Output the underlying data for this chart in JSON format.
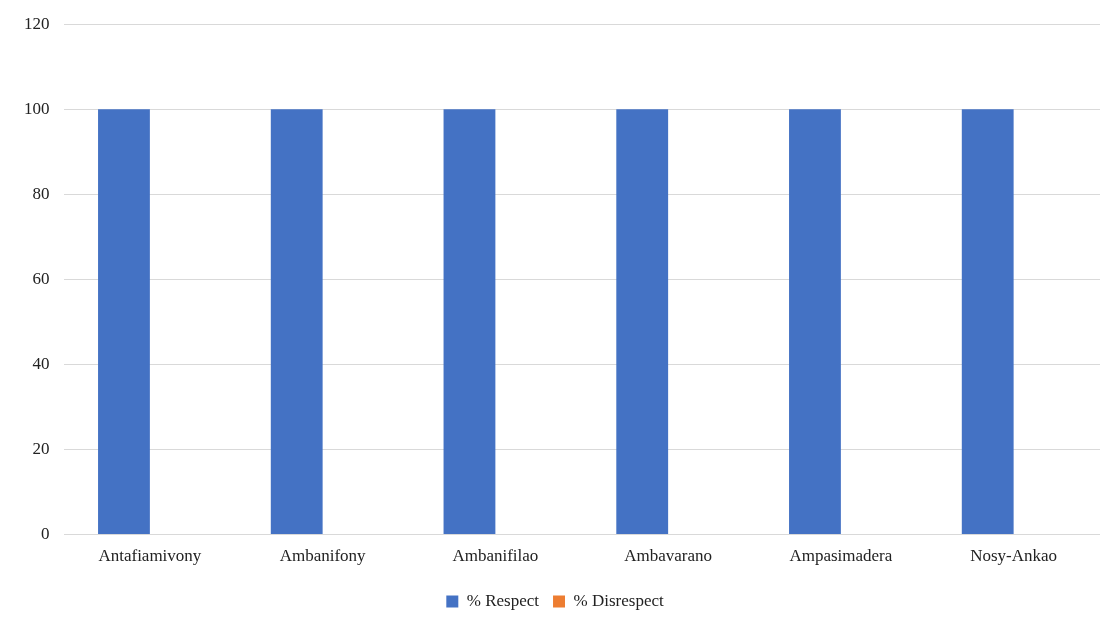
{
  "chart_data": {
    "type": "bar",
    "categories": [
      "Antafiamivony",
      "Ambanifony",
      "Ambanifilao",
      "Ambavarano",
      "Ampasimadera",
      "Nosy-Ankao"
    ],
    "series": [
      {
        "name": "% Respect",
        "color": "#4472c4",
        "values": [
          100,
          100,
          100,
          100,
          100,
          100
        ]
      },
      {
        "name": "% Disrespect",
        "color": "#ed7d31",
        "values": [
          0,
          0,
          0,
          0,
          0,
          0
        ]
      }
    ],
    "ylim": [
      0,
      120
    ],
    "yticks": [
      0,
      20,
      40,
      60,
      80,
      100,
      120
    ],
    "grid": "y",
    "legend": "bottom"
  }
}
